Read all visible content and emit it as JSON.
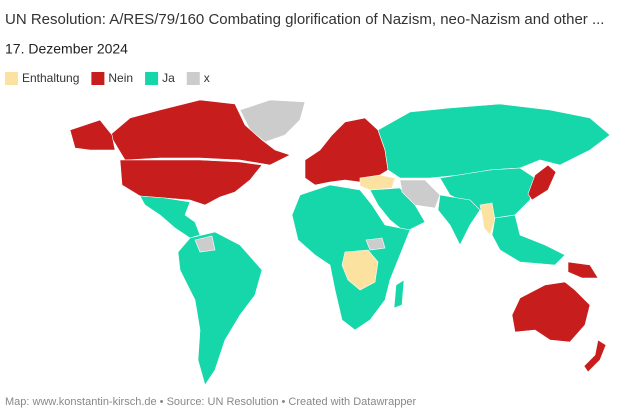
{
  "header": {
    "title": "UN Resolution: A/RES/79/160 Combating glorification of Nazism, neo-Nazism and other ...",
    "date": "17. Dezember 2024"
  },
  "legend": [
    {
      "name": "Enthaltung",
      "color": "#fbe2a0"
    },
    {
      "name": "Nein",
      "color": "#c71e1d"
    },
    {
      "name": "Ja",
      "color": "#15d7a9"
    },
    {
      "name": "x",
      "color": "#cccccc"
    }
  ],
  "footer": "Map: www.konstantin-kirsch.de • Source: UN Resolution • Created with Datawrapper"
}
